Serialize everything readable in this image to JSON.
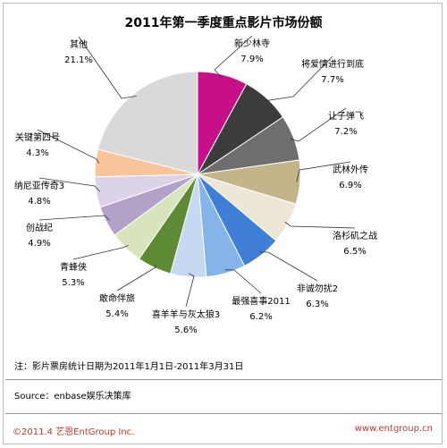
{
  "chart_data": {
    "type": "pie",
    "title": "2011年第一季度重点影片市场份额",
    "slices": [
      {
        "name": "新少林寺",
        "value": 7.9,
        "pct": "7.9%",
        "color": "#c80f8a"
      },
      {
        "name": "将爱情进行到底",
        "value": 7.7,
        "pct": "7.7%",
        "color": "#3c3c3c"
      },
      {
        "name": "让子弹飞",
        "value": 7.2,
        "pct": "7.2%",
        "color": "#6e6e6e"
      },
      {
        "name": "武林外传",
        "value": 6.9,
        "pct": "6.9%",
        "color": "#c4b48a"
      },
      {
        "name": "洛杉矶之战",
        "value": 6.5,
        "pct": "6.5%",
        "color": "#ece7d6"
      },
      {
        "name": "非诚勿扰2",
        "value": 6.3,
        "pct": "6.3%",
        "color": "#3f7fd6"
      },
      {
        "name": "最强喜事2011",
        "value": 6.2,
        "pct": "6.2%",
        "color": "#86b4e8"
      },
      {
        "name": "喜羊羊与灰太狼3",
        "value": 5.6,
        "pct": "5.6%",
        "color": "#c5d9f1"
      },
      {
        "name": "敢命伴旅",
        "value": 5.4,
        "pct": "5.4%",
        "color": "#5f8a35"
      },
      {
        "name": "青蜂侠",
        "value": 5.3,
        "pct": "5.3%",
        "color": "#d7e4bd"
      },
      {
        "name": "创战纪",
        "value": 4.9,
        "pct": "4.9%",
        "color": "#b3a2c7"
      },
      {
        "name": "纳尼亚传奇3",
        "value": 4.8,
        "pct": "4.8%",
        "color": "#dcd3ea"
      },
      {
        "name": "关键第四号",
        "value": 4.3,
        "pct": "4.3%",
        "color": "#f9c499"
      },
      {
        "name": "其他",
        "value": 21.1,
        "pct": "21.1%",
        "color": "#d9d9d9"
      }
    ]
  },
  "footer": {
    "note": "注：影片票房统计日期为2011年1月1日-2011年3月31日",
    "source": "Source：enbase娱乐决策库",
    "copyright": "©2011.4 艺恩EntGroup Inc.",
    "website": "www.entgroup.cn"
  }
}
